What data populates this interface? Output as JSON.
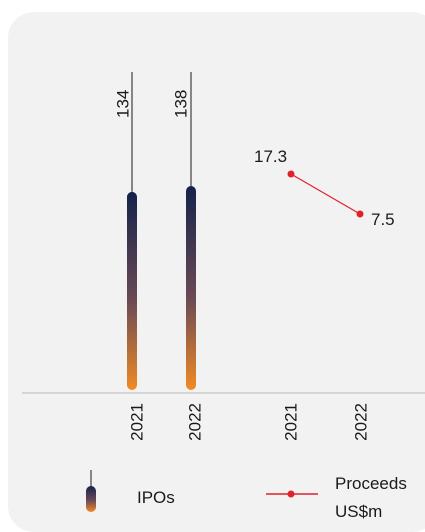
{
  "chart_data": [
    {
      "type": "bar",
      "categories": [
        "2021",
        "2022"
      ],
      "series": [
        {
          "name": "IPOs",
          "values": [
            134,
            138
          ]
        }
      ],
      "data_labels": [
        "134",
        "138"
      ],
      "colors": {
        "bar_top": "#14234a",
        "bar_bottom": "#f08a24",
        "leader": "#1a1a1a"
      }
    },
    {
      "type": "line",
      "categories": [
        "2021",
        "2022"
      ],
      "series": [
        {
          "name": "Proceeds US$m",
          "values": [
            17.3,
            7.5
          ]
        }
      ],
      "data_labels": [
        "17.3",
        "7.5"
      ],
      "colors": {
        "line": "#e0202a"
      }
    }
  ],
  "legend": {
    "ipos_label": "IPOs",
    "proceeds_label_line1": "Proceeds",
    "proceeds_label_line2": "US$m",
    "placement": "bottom"
  },
  "colors": {
    "card_bg": "#f2f2f2",
    "axis": "#b8b8b8"
  }
}
